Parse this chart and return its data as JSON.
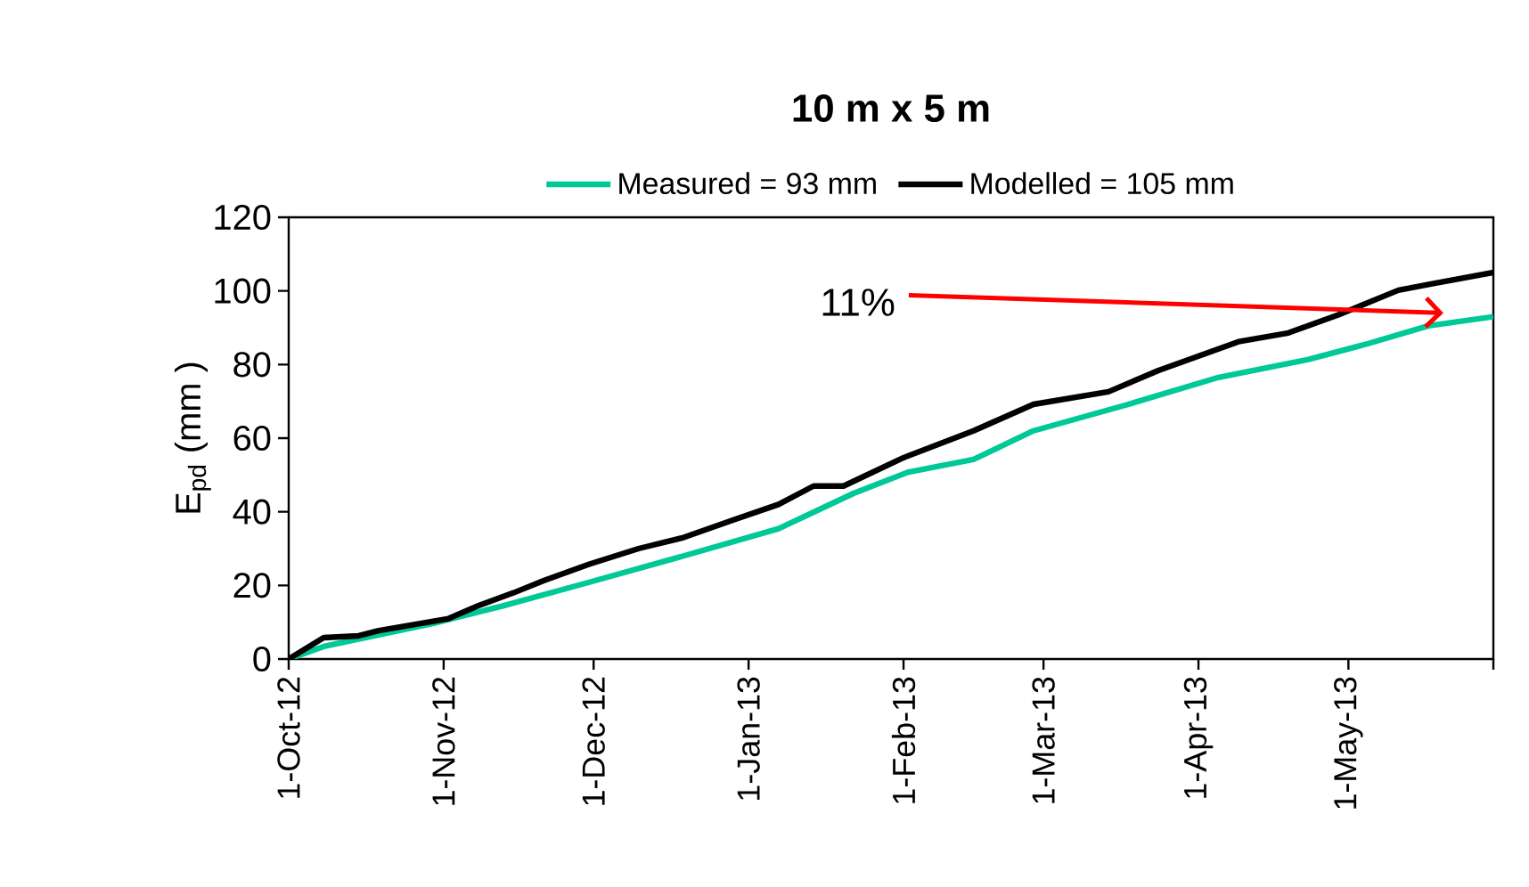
{
  "chart_data": {
    "type": "line",
    "title": "10 m x 5 m",
    "ylabel": "E$_{pd}$ (mm )",
    "xlim": [
      "2012-10-01",
      "2013-05-30"
    ],
    "ylim": [
      0,
      120
    ],
    "xticks": [
      {
        "value": "2012-10-01",
        "label": "1-Oct-12"
      },
      {
        "value": "2012-11-01",
        "label": "1-Nov-12"
      },
      {
        "value": "2012-12-01",
        "label": "1-Dec-12"
      },
      {
        "value": "2013-01-01",
        "label": "1-Jan-13"
      },
      {
        "value": "2013-02-01",
        "label": "1-Feb-13"
      },
      {
        "value": "2013-03-01",
        "label": "1-Mar-13"
      },
      {
        "value": "2013-04-01",
        "label": "1-Apr-13"
      },
      {
        "value": "2013-05-01",
        "label": "1-May-13"
      },
      {
        "value": "2013-05-30",
        "label": null
      }
    ],
    "yticks": [
      0,
      20,
      40,
      60,
      80,
      100,
      120
    ],
    "legend": "top",
    "grid": false,
    "marker": "none",
    "line_style": "solid",
    "annotations": [
      {
        "text": "11%",
        "x": "2013-05-20",
        "y": 94
      }
    ],
    "series": [
      {
        "name": "Measured = 93 mm",
        "color": "#00c896",
        "x": [
          "2012-10-01",
          "2012-10-08",
          "2012-10-30",
          "2012-11-13",
          "2012-11-30",
          "2012-12-19",
          "2013-01-07",
          "2013-01-22",
          "2013-02-02",
          "2013-02-15",
          "2013-02-27",
          "2013-03-18",
          "2013-04-05",
          "2013-04-23",
          "2013-05-05",
          "2013-05-17",
          "2013-05-30"
        ],
        "values": [
          0,
          3.4,
          9.7,
          14.5,
          20.8,
          28,
          35.4,
          45,
          50.8,
          54.2,
          62,
          69.2,
          76.5,
          81.4,
          85.7,
          90.5,
          93
        ]
      },
      {
        "name": "Modelled = 105 mm",
        "color": "#000000",
        "x": [
          "2012-10-01",
          "2012-10-08",
          "2012-10-15",
          "2012-10-19",
          "2012-11-02",
          "2012-11-08",
          "2012-11-15",
          "2012-11-21",
          "2012-11-30",
          "2012-12-10",
          "2012-12-19",
          "2012-12-29",
          "2013-01-07",
          "2013-01-14",
          "2013-01-20",
          "2013-02-01",
          "2013-02-15",
          "2013-02-27",
          "2013-03-14",
          "2013-03-24",
          "2013-04-09",
          "2013-04-19",
          "2013-04-29",
          "2013-05-11",
          "2013-05-18",
          "2013-05-30"
        ],
        "values": [
          0,
          5.8,
          6.3,
          7.7,
          11,
          14.5,
          18,
          21.3,
          25.7,
          30,
          33,
          37.8,
          42,
          47,
          47,
          54.7,
          62,
          69.2,
          72.6,
          78.4,
          86.2,
          88.6,
          93.5,
          100.2,
          102,
          105
        ]
      }
    ]
  }
}
